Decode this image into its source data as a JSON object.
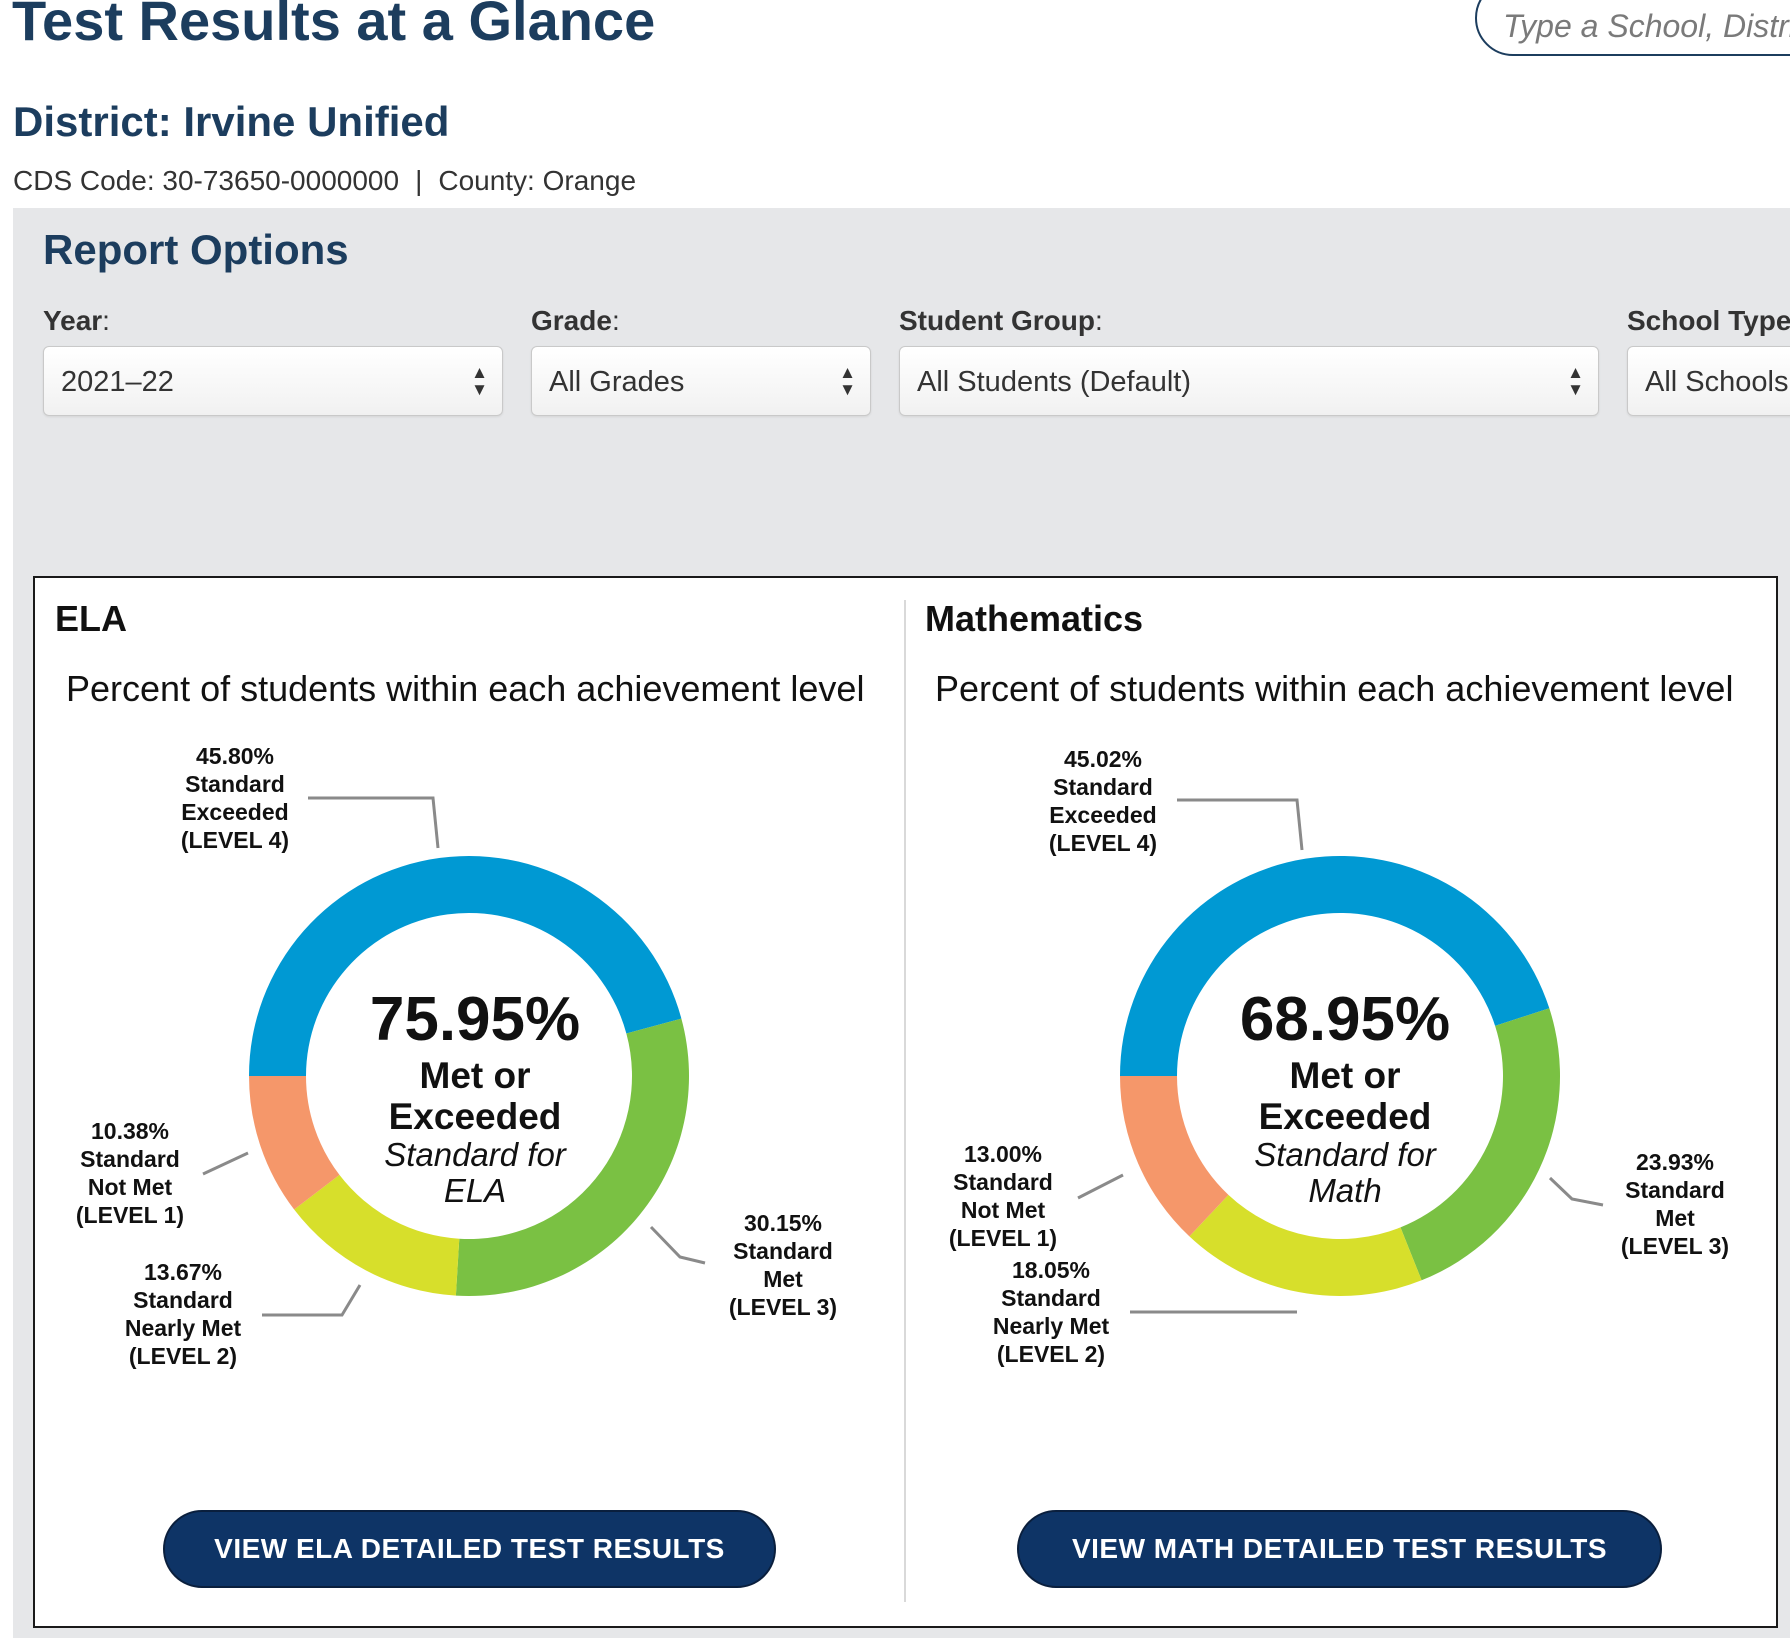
{
  "header": {
    "title": "Test Results at a Glance",
    "search_placeholder": "Type a School, District, or County"
  },
  "entity": {
    "district_label": "District: Irvine Unified",
    "cds_code": "CDS Code: 30-73650-0000000",
    "separator": "|",
    "county": "County: Orange"
  },
  "report_options": {
    "title": "Report Options",
    "year": {
      "label": "Year",
      "value": "2021–22"
    },
    "grade": {
      "label": "Grade",
      "value": "All Grades"
    },
    "student_group": {
      "label": "Student Group",
      "value": "All Students (Default)"
    },
    "school_type": {
      "label": "School Type",
      "value": "All Schools"
    },
    "colon": ":"
  },
  "panels": {
    "ela": {
      "title": "ELA",
      "subtitle": "Percent of students within each achievement level",
      "center_pct": "75.95%",
      "center_label_1": "Met or",
      "center_label_2": "Exceeded",
      "center_sub_1": "Standard for",
      "center_sub_2": "ELA",
      "button": "VIEW ELA DETAILED TEST RESULTS"
    },
    "math": {
      "title": "Mathematics",
      "subtitle": "Percent of students within each achievement level",
      "center_pct": "68.95%",
      "center_label_1": "Met or",
      "center_label_2": "Exceeded",
      "center_sub_1": "Standard for",
      "center_sub_2": "Math",
      "button": "VIEW MATH DETAILED TEST RESULTS"
    }
  },
  "level_labels": {
    "l4": [
      "Standard",
      "Exceeded",
      "(LEVEL 4)"
    ],
    "l3": [
      "Standard",
      "Met",
      "(LEVEL 3)"
    ],
    "l2": [
      "Standard",
      "Nearly Met",
      "(LEVEL 2)"
    ],
    "l1": [
      "Standard",
      "Not Met",
      "(LEVEL 1)"
    ]
  },
  "colors": {
    "level4": "#0099d3",
    "level3": "#7ac143",
    "level2": "#d7df2b",
    "level1": "#f5976a",
    "navy": "#1c3d5e",
    "button": "#0e3466"
  },
  "chart_data": [
    {
      "type": "pie",
      "title": "ELA",
      "series": [
        {
          "name": "Standard Exceeded (LEVEL 4)",
          "pct_text": "45.80%",
          "value": 45.8
        },
        {
          "name": "Standard Met (LEVEL 3)",
          "pct_text": "30.15%",
          "value": 30.15
        },
        {
          "name": "Standard Nearly Met (LEVEL 2)",
          "pct_text": "13.67%",
          "value": 13.67
        },
        {
          "name": "Standard Not Met (LEVEL 1)",
          "pct_text": "10.38%",
          "value": 10.38
        }
      ]
    },
    {
      "type": "pie",
      "title": "Mathematics",
      "series": [
        {
          "name": "Standard Exceeded (LEVEL 4)",
          "pct_text": "45.02%",
          "value": 45.02
        },
        {
          "name": "Standard Met (LEVEL 3)",
          "pct_text": "23.93%",
          "value": 23.93
        },
        {
          "name": "Standard Nearly Met (LEVEL 2)",
          "pct_text": "18.05%",
          "value": 18.05
        },
        {
          "name": "Standard Not Met (LEVEL 1)",
          "pct_text": "13.00%",
          "value": 13.0
        }
      ]
    }
  ]
}
